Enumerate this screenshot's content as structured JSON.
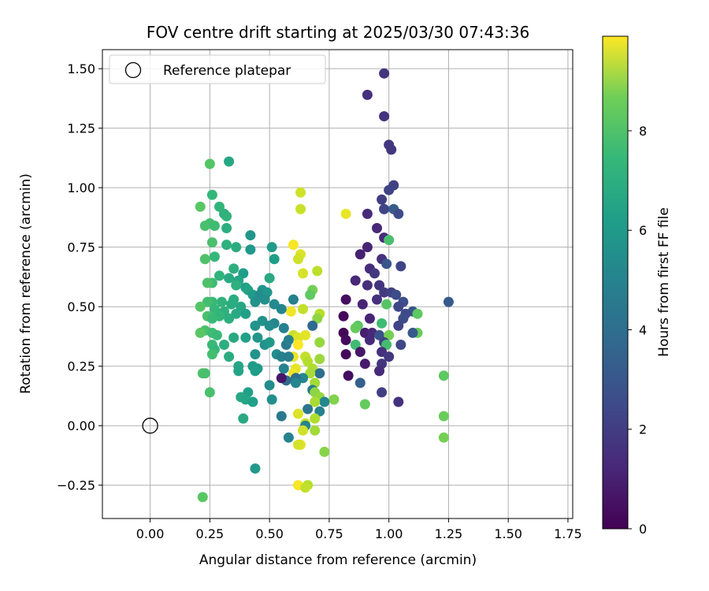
{
  "chart_data": {
    "type": "scatter",
    "title": "FOV centre drift starting at 2025/03/30 07:43:36",
    "xlabel": "Angular distance from reference (arcmin)",
    "ylabel": "Rotation from reference (arcmin)",
    "xlim": [
      -0.2,
      1.77
    ],
    "ylim": [
      -0.39,
      1.58
    ],
    "xticks": [
      "0.00",
      "0.25",
      "0.50",
      "0.75",
      "1.00",
      "1.25",
      "1.50",
      "1.75"
    ],
    "yticks": [
      "−0.25",
      "0.00",
      "0.25",
      "0.50",
      "0.75",
      "1.00",
      "1.25",
      "1.50"
    ],
    "grid": true,
    "legend": {
      "position": "top-left",
      "entries": [
        "Reference platepar"
      ]
    },
    "reference_point": {
      "x": 0.0,
      "y": 0.0
    },
    "colorbar": {
      "label": "Hours from first FF file",
      "range": [
        0,
        9.9
      ],
      "ticks": [
        "0",
        "2",
        "4",
        "6",
        "8"
      ],
      "colormap": "viridis"
    },
    "points": [
      [
        0.98,
        1.48,
        1.5
      ],
      [
        0.91,
        1.39,
        1.4
      ],
      [
        0.98,
        1.3,
        1.5
      ],
      [
        1.0,
        1.18,
        1.6
      ],
      [
        1.01,
        1.16,
        1.6
      ],
      [
        1.02,
        1.01,
        1.9
      ],
      [
        1.0,
        0.99,
        2.0
      ],
      [
        0.97,
        0.95,
        1.8
      ],
      [
        1.02,
        0.91,
        2.9
      ],
      [
        1.04,
        0.89,
        2.2
      ],
      [
        0.98,
        0.91,
        2.0
      ],
      [
        0.91,
        0.89,
        1.2
      ],
      [
        0.95,
        0.83,
        1.1
      ],
      [
        0.98,
        0.79,
        1.2
      ],
      [
        1.0,
        0.78,
        7.0
      ],
      [
        0.91,
        0.75,
        1.0
      ],
      [
        0.88,
        0.72,
        0.9
      ],
      [
        0.97,
        0.7,
        1.4
      ],
      [
        0.99,
        0.68,
        2.6
      ],
      [
        1.05,
        0.67,
        2.0
      ],
      [
        0.92,
        0.66,
        1.3
      ],
      [
        0.94,
        0.64,
        1.6
      ],
      [
        0.86,
        0.61,
        1.1
      ],
      [
        0.91,
        0.59,
        1.3
      ],
      [
        0.96,
        0.59,
        1.5
      ],
      [
        0.98,
        0.56,
        1.7
      ],
      [
        1.01,
        0.56,
        1.9
      ],
      [
        1.03,
        0.55,
        2.3
      ],
      [
        0.95,
        0.53,
        1.4
      ],
      [
        1.06,
        0.52,
        2.4
      ],
      [
        1.25,
        0.52,
        2.8
      ],
      [
        0.82,
        0.53,
        0.4
      ],
      [
        0.89,
        0.51,
        1.0
      ],
      [
        0.99,
        0.51,
        7.2
      ],
      [
        1.04,
        0.5,
        2.1
      ],
      [
        1.1,
        0.48,
        2.6
      ],
      [
        1.07,
        0.47,
        2.2
      ],
      [
        1.12,
        0.47,
        7.4
      ],
      [
        0.81,
        0.46,
        0.2
      ],
      [
        0.92,
        0.45,
        1.0
      ],
      [
        1.06,
        0.45,
        2.3
      ],
      [
        0.97,
        0.43,
        6.8
      ],
      [
        1.04,
        0.42,
        2.0
      ],
      [
        0.87,
        0.42,
        7.3
      ],
      [
        0.86,
        0.41,
        7.5
      ],
      [
        0.81,
        0.39,
        0.1
      ],
      [
        0.9,
        0.39,
        0.8
      ],
      [
        0.93,
        0.39,
        1.1
      ],
      [
        0.96,
        0.38,
        2.5
      ],
      [
        1.12,
        0.39,
        7.6
      ],
      [
        1.1,
        0.39,
        2.8
      ],
      [
        1.0,
        0.38,
        7.8
      ],
      [
        0.82,
        0.36,
        0.3
      ],
      [
        0.92,
        0.36,
        1.2
      ],
      [
        0.98,
        0.35,
        1.9
      ],
      [
        1.05,
        0.34,
        2.1
      ],
      [
        0.86,
        0.34,
        6.8
      ],
      [
        0.99,
        0.34,
        6.9
      ],
      [
        0.82,
        0.3,
        0.2
      ],
      [
        0.88,
        0.31,
        0.6
      ],
      [
        0.97,
        0.31,
        1.4
      ],
      [
        1.0,
        0.29,
        1.6
      ],
      [
        0.9,
        0.26,
        0.7
      ],
      [
        0.97,
        0.26,
        1.5
      ],
      [
        0.96,
        0.23,
        1.2
      ],
      [
        0.83,
        0.21,
        0.4
      ],
      [
        0.88,
        0.18,
        3.0
      ],
      [
        0.97,
        0.14,
        1.8
      ],
      [
        1.04,
        0.1,
        1.4
      ],
      [
        0.9,
        0.09,
        7.5
      ],
      [
        1.23,
        0.21,
        7.4
      ],
      [
        1.23,
        0.04,
        7.6
      ],
      [
        1.23,
        -0.05,
        7.8
      ],
      [
        0.63,
        0.98,
        9.2
      ],
      [
        0.63,
        0.91,
        9.1
      ],
      [
        0.82,
        0.89,
        9.6
      ],
      [
        0.6,
        0.76,
        9.8
      ],
      [
        0.63,
        0.72,
        9.4
      ],
      [
        0.62,
        0.7,
        9.2
      ],
      [
        0.7,
        0.65,
        8.9
      ],
      [
        0.64,
        0.64,
        9.3
      ],
      [
        0.68,
        0.57,
        7.8
      ],
      [
        0.67,
        0.55,
        7.4
      ],
      [
        0.6,
        0.53,
        4.3
      ],
      [
        0.64,
        0.49,
        9.0
      ],
      [
        0.59,
        0.48,
        9.7
      ],
      [
        0.71,
        0.47,
        8.8
      ],
      [
        0.7,
        0.45,
        8.2
      ],
      [
        0.68,
        0.42,
        3.4
      ],
      [
        0.6,
        0.38,
        9.1
      ],
      [
        0.62,
        0.37,
        9.4
      ],
      [
        0.65,
        0.38,
        9.5
      ],
      [
        0.71,
        0.35,
        8.3
      ],
      [
        0.62,
        0.34,
        9.9
      ],
      [
        0.57,
        0.34,
        4.0
      ],
      [
        0.6,
        0.29,
        9.6
      ],
      [
        0.65,
        0.29,
        9.0
      ],
      [
        0.66,
        0.27,
        8.8
      ],
      [
        0.71,
        0.28,
        8.4
      ],
      [
        0.68,
        0.24,
        8.7
      ],
      [
        0.61,
        0.24,
        9.5
      ],
      [
        0.6,
        0.22,
        9.7
      ],
      [
        0.71,
        0.22,
        3.6
      ],
      [
        0.67,
        0.22,
        8.6
      ],
      [
        0.69,
        0.18,
        8.5
      ],
      [
        0.64,
        0.2,
        4.6
      ],
      [
        0.61,
        0.2,
        3.5
      ],
      [
        0.57,
        0.19,
        3.4
      ],
      [
        0.55,
        0.2,
        0.6
      ],
      [
        0.68,
        0.15,
        4.1
      ],
      [
        0.69,
        0.14,
        8.2
      ],
      [
        0.71,
        0.12,
        8.3
      ],
      [
        0.77,
        0.11,
        8.0
      ],
      [
        0.73,
        0.1,
        4.6
      ],
      [
        0.69,
        0.1,
        8.6
      ],
      [
        0.66,
        0.07,
        3.9
      ],
      [
        0.71,
        0.06,
        4.4
      ],
      [
        0.62,
        0.05,
        9.4
      ],
      [
        0.69,
        0.03,
        8.7
      ],
      [
        0.65,
        0.01,
        9.1
      ],
      [
        0.69,
        -0.02,
        8.5
      ],
      [
        0.65,
        0.0,
        4.5
      ],
      [
        0.64,
        -0.02,
        9.2
      ],
      [
        0.58,
        -0.05,
        4.4
      ],
      [
        0.63,
        -0.08,
        9.5
      ],
      [
        0.62,
        -0.08,
        9.3
      ],
      [
        0.73,
        -0.11,
        8.1
      ],
      [
        0.62,
        -0.25,
        9.8
      ],
      [
        0.66,
        -0.25,
        8.8
      ],
      [
        0.65,
        -0.26,
        9.0
      ],
      [
        0.33,
        1.11,
        5.9
      ],
      [
        0.25,
        1.1,
        7.2
      ],
      [
        0.26,
        0.97,
        6.6
      ],
      [
        0.21,
        0.92,
        7.3
      ],
      [
        0.29,
        0.92,
        6.5
      ],
      [
        0.31,
        0.89,
        6.3
      ],
      [
        0.32,
        0.88,
        6.4
      ],
      [
        0.25,
        0.85,
        6.9
      ],
      [
        0.23,
        0.84,
        7.0
      ],
      [
        0.27,
        0.84,
        6.8
      ],
      [
        0.32,
        0.83,
        6.2
      ],
      [
        0.42,
        0.8,
        5.2
      ],
      [
        0.26,
        0.77,
        7.0
      ],
      [
        0.32,
        0.76,
        6.3
      ],
      [
        0.36,
        0.75,
        6.1
      ],
      [
        0.42,
        0.74,
        5.3
      ],
      [
        0.51,
        0.75,
        5.4
      ],
      [
        0.27,
        0.71,
        6.6
      ],
      [
        0.23,
        0.7,
        7.1
      ],
      [
        0.52,
        0.7,
        5.5
      ],
      [
        0.35,
        0.66,
        6.2
      ],
      [
        0.39,
        0.64,
        5.5
      ],
      [
        0.29,
        0.63,
        6.4
      ],
      [
        0.33,
        0.62,
        6.0
      ],
      [
        0.37,
        0.61,
        5.8
      ],
      [
        0.5,
        0.62,
        6.0
      ],
      [
        0.26,
        0.6,
        6.8
      ],
      [
        0.24,
        0.6,
        7.1
      ],
      [
        0.36,
        0.59,
        6.3
      ],
      [
        0.4,
        0.58,
        5.6
      ],
      [
        0.41,
        0.57,
        5.7
      ],
      [
        0.47,
        0.57,
        5.1
      ],
      [
        0.43,
        0.55,
        5.4
      ],
      [
        0.46,
        0.55,
        4.8
      ],
      [
        0.49,
        0.56,
        5.2
      ],
      [
        0.35,
        0.53,
        6.1
      ],
      [
        0.3,
        0.52,
        6.4
      ],
      [
        0.26,
        0.52,
        6.7
      ],
      [
        0.24,
        0.52,
        6.9
      ],
      [
        0.21,
        0.5,
        7.2
      ],
      [
        0.34,
        0.51,
        6.1
      ],
      [
        0.38,
        0.5,
        5.9
      ],
      [
        0.44,
        0.52,
        5.0
      ],
      [
        0.48,
        0.53,
        4.9
      ],
      [
        0.52,
        0.51,
        4.7
      ],
      [
        0.55,
        0.49,
        4.5
      ],
      [
        0.27,
        0.49,
        6.6
      ],
      [
        0.31,
        0.48,
        6.3
      ],
      [
        0.36,
        0.47,
        6.0
      ],
      [
        0.4,
        0.47,
        5.6
      ],
      [
        0.24,
        0.46,
        7.0
      ],
      [
        0.29,
        0.46,
        6.5
      ],
      [
        0.33,
        0.45,
        6.2
      ],
      [
        0.26,
        0.45,
        6.7
      ],
      [
        0.47,
        0.44,
        5.0
      ],
      [
        0.52,
        0.43,
        4.6
      ],
      [
        0.44,
        0.42,
        5.1
      ],
      [
        0.5,
        0.42,
        4.8
      ],
      [
        0.56,
        0.41,
        4.4
      ],
      [
        0.23,
        0.4,
        7.0
      ],
      [
        0.26,
        0.39,
        6.8
      ],
      [
        0.21,
        0.39,
        7.3
      ],
      [
        0.28,
        0.38,
        6.7
      ],
      [
        0.35,
        0.37,
        6.0
      ],
      [
        0.4,
        0.37,
        5.6
      ],
      [
        0.45,
        0.37,
        5.2
      ],
      [
        0.58,
        0.36,
        4.3
      ],
      [
        0.26,
        0.34,
        6.7
      ],
      [
        0.31,
        0.34,
        6.2
      ],
      [
        0.48,
        0.34,
        5.0
      ],
      [
        0.5,
        0.35,
        5.3
      ],
      [
        0.27,
        0.32,
        6.6
      ],
      [
        0.44,
        0.3,
        5.1
      ],
      [
        0.53,
        0.3,
        4.8
      ],
      [
        0.55,
        0.29,
        4.3
      ],
      [
        0.58,
        0.29,
        4.2
      ],
      [
        0.33,
        0.29,
        6.1
      ],
      [
        0.26,
        0.3,
        6.9
      ],
      [
        0.37,
        0.25,
        5.8
      ],
      [
        0.43,
        0.25,
        5.4
      ],
      [
        0.45,
        0.24,
        5.3
      ],
      [
        0.37,
        0.23,
        5.8
      ],
      [
        0.44,
        0.23,
        5.5
      ],
      [
        0.56,
        0.24,
        4.4
      ],
      [
        0.61,
        0.18,
        4.5
      ],
      [
        0.22,
        0.22,
        7.1
      ],
      [
        0.23,
        0.22,
        7.0
      ],
      [
        0.5,
        0.17,
        4.8
      ],
      [
        0.25,
        0.14,
        7.0
      ],
      [
        0.41,
        0.14,
        5.6
      ],
      [
        0.38,
        0.12,
        5.9
      ],
      [
        0.4,
        0.11,
        5.8
      ],
      [
        0.43,
        0.1,
        5.6
      ],
      [
        0.51,
        0.11,
        4.9
      ],
      [
        0.55,
        0.04,
        4.0
      ],
      [
        0.39,
        0.03,
        6.0
      ],
      [
        0.22,
        -0.3,
        7.3
      ],
      [
        0.44,
        -0.18,
        5.3
      ]
    ]
  }
}
